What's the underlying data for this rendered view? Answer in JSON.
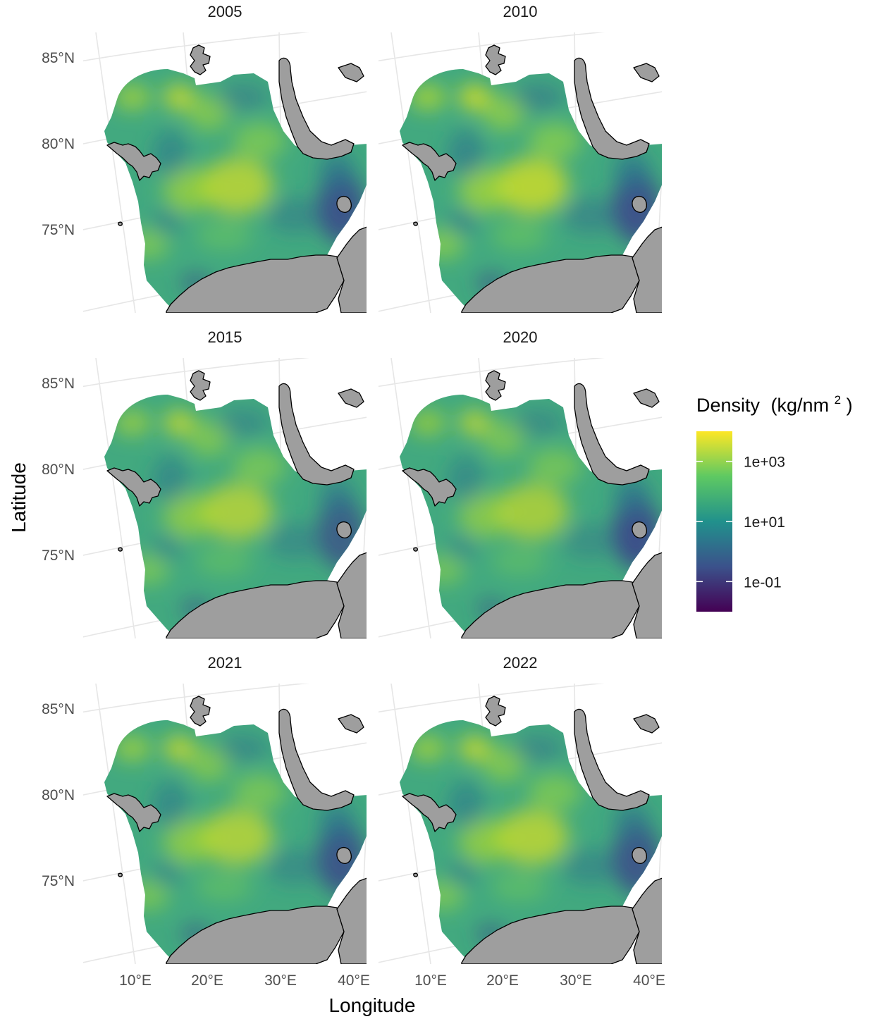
{
  "figure": {
    "x_axis_title": "Longitude",
    "y_axis_title": "Latitude",
    "x_ticks": [
      "10°E",
      "20°E",
      "30°E",
      "40°E"
    ],
    "y_ticks": [
      "85°N",
      "80°N",
      "75°N"
    ]
  },
  "panels": [
    {
      "year": "2005",
      "intensity": 1.0,
      "east_low": 0.92
    },
    {
      "year": "2010",
      "intensity": 1.1,
      "east_low": 0.95
    },
    {
      "year": "2015",
      "intensity": 0.95,
      "east_low": 0.8
    },
    {
      "year": "2020",
      "intensity": 0.9,
      "east_low": 0.98
    },
    {
      "year": "2021",
      "intensity": 0.97,
      "east_low": 0.9
    },
    {
      "year": "2022",
      "intensity": 1.0,
      "east_low": 0.88
    }
  ],
  "legend": {
    "title_text": "Density",
    "title_unit_base": "(kg/nm",
    "title_unit_exp": "2",
    "title_unit_close": ")",
    "ticks": [
      {
        "label": "1e+03",
        "value": 3
      },
      {
        "label": "1e+01",
        "value": 1
      },
      {
        "label": "1e-01",
        "value": -1
      }
    ],
    "range": [
      -2,
      4
    ],
    "palette": "viridis",
    "colors": [
      "#440154",
      "#3b528b",
      "#21918c",
      "#5ec962",
      "#fde725"
    ]
  },
  "colors": {
    "land": "#9e9e9e",
    "coast": "#000000",
    "grid": "#e6e6e6"
  }
}
